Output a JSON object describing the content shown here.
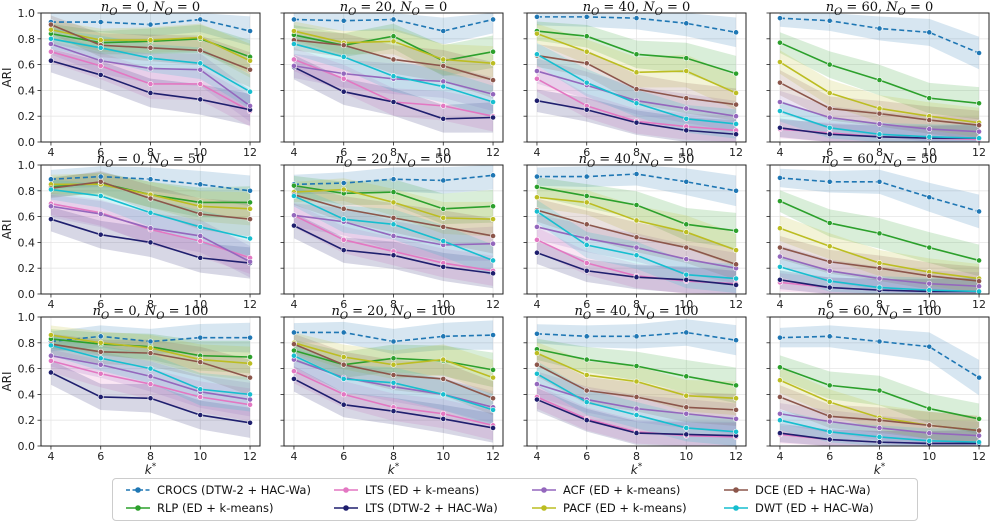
{
  "chart_data": {
    "type": "line",
    "ylabel": "ARI",
    "xlabel": "k*",
    "xticks": [
      4,
      6,
      8,
      10,
      12
    ],
    "yticks": [
      "0.0",
      "0.2",
      "0.4",
      "0.6",
      "0.8",
      "1.0"
    ],
    "ylim": [
      0,
      1
    ],
    "xlim": [
      3.6,
      12.4
    ],
    "series": [
      {
        "key": "crocs",
        "name": "CROCS (DTW-2 + HAC-Wa)",
        "color": "#1f77b4",
        "dashed": true
      },
      {
        "key": "rlp",
        "name": "RLP (ED + k-means)",
        "color": "#2ca02c",
        "dashed": false
      },
      {
        "key": "lts_ed",
        "name": "LTS (ED + k-means)",
        "color": "#e377c2",
        "dashed": false
      },
      {
        "key": "lts_dtw",
        "name": "LTS (DTW-2 + HAC-Wa)",
        "color": "#1f1f6e",
        "dashed": false
      },
      {
        "key": "acf",
        "name": "ACF (ED + k-means)",
        "color": "#9467bd",
        "dashed": false
      },
      {
        "key": "pacf",
        "name": "PACF (ED + k-means)",
        "color": "#bcbd22",
        "dashed": false
      },
      {
        "key": "dce",
        "name": "DCE (ED + HAC-Wa)",
        "color": "#8c564b",
        "dashed": false
      },
      {
        "key": "dwt",
        "name": "DWT (ED + HAC-Wa)",
        "color": "#17becf",
        "dashed": false
      }
    ],
    "panels": [
      {
        "title": "n_O = 0, N_O = 0",
        "values": {
          "crocs": [
            0.93,
            0.93,
            0.91,
            0.95,
            0.86
          ],
          "rlp": [
            0.84,
            0.77,
            0.78,
            0.8,
            0.66
          ],
          "lts_ed": [
            0.7,
            0.59,
            0.45,
            0.45,
            0.24
          ],
          "lts_dtw": [
            0.63,
            0.52,
            0.38,
            0.33,
            0.25
          ],
          "acf": [
            0.76,
            0.63,
            0.57,
            0.56,
            0.28
          ],
          "pacf": [
            0.87,
            0.79,
            0.79,
            0.81,
            0.63
          ],
          "dce": [
            0.91,
            0.75,
            0.73,
            0.71,
            0.56
          ],
          "dwt": [
            0.8,
            0.73,
            0.65,
            0.61,
            0.39
          ]
        }
      },
      {
        "title": "n_O = 20, N_O = 0",
        "values": {
          "crocs": [
            0.95,
            0.94,
            0.95,
            0.86,
            0.95
          ],
          "rlp": [
            0.83,
            0.75,
            0.82,
            0.63,
            0.7
          ],
          "lts_ed": [
            0.64,
            0.49,
            0.31,
            0.28,
            0.2
          ],
          "lts_dtw": [
            0.58,
            0.39,
            0.31,
            0.18,
            0.19
          ],
          "acf": [
            0.59,
            0.53,
            0.49,
            0.47,
            0.37
          ],
          "pacf": [
            0.86,
            0.77,
            0.78,
            0.64,
            0.61
          ],
          "dce": [
            0.79,
            0.75,
            0.64,
            0.59,
            0.48
          ],
          "dwt": [
            0.76,
            0.66,
            0.51,
            0.43,
            0.31
          ]
        }
      },
      {
        "title": "n_O = 40, N_O = 0",
        "values": {
          "crocs": [
            0.97,
            0.97,
            0.96,
            0.92,
            0.85
          ],
          "rlp": [
            0.86,
            0.82,
            0.68,
            0.65,
            0.53
          ],
          "lts_ed": [
            0.49,
            0.28,
            0.16,
            0.12,
            0.09
          ],
          "lts_dtw": [
            0.32,
            0.25,
            0.15,
            0.09,
            0.06
          ],
          "acf": [
            0.55,
            0.44,
            0.32,
            0.26,
            0.2
          ],
          "pacf": [
            0.84,
            0.7,
            0.54,
            0.55,
            0.38
          ],
          "dce": [
            0.67,
            0.61,
            0.41,
            0.34,
            0.29
          ],
          "dwt": [
            0.68,
            0.46,
            0.3,
            0.18,
            0.14
          ]
        }
      },
      {
        "title": "n_O = 60, N_O = 0",
        "values": {
          "crocs": [
            0.96,
            0.94,
            0.88,
            0.85,
            0.69
          ],
          "rlp": [
            0.77,
            0.6,
            0.48,
            0.34,
            0.3
          ],
          "lts_ed": [
            0.1,
            0.07,
            0.04,
            0.03,
            0.02
          ],
          "lts_dtw": [
            0.11,
            0.06,
            0.04,
            0.03,
            0.03
          ],
          "acf": [
            0.31,
            0.19,
            0.14,
            0.1,
            0.08
          ],
          "pacf": [
            0.62,
            0.38,
            0.26,
            0.2,
            0.15
          ],
          "dce": [
            0.46,
            0.26,
            0.22,
            0.17,
            0.13
          ],
          "dwt": [
            0.24,
            0.11,
            0.06,
            0.04,
            0.03
          ]
        }
      },
      {
        "title": "n_O = 0, N_O = 50",
        "values": {
          "crocs": [
            0.89,
            0.91,
            0.89,
            0.85,
            0.8
          ],
          "rlp": [
            0.83,
            0.86,
            0.77,
            0.71,
            0.71
          ],
          "lts_ed": [
            0.7,
            0.63,
            0.5,
            0.41,
            0.28
          ],
          "lts_dtw": [
            0.58,
            0.46,
            0.4,
            0.28,
            0.24
          ],
          "acf": [
            0.68,
            0.62,
            0.51,
            0.45,
            0.25
          ],
          "pacf": [
            0.85,
            0.85,
            0.77,
            0.68,
            0.66
          ],
          "dce": [
            0.82,
            0.87,
            0.74,
            0.62,
            0.58
          ],
          "dwt": [
            0.81,
            0.76,
            0.63,
            0.52,
            0.43
          ]
        }
      },
      {
        "title": "n_O = 20, N_O = 50",
        "values": {
          "crocs": [
            0.85,
            0.86,
            0.89,
            0.88,
            0.92
          ],
          "rlp": [
            0.84,
            0.78,
            0.79,
            0.66,
            0.68
          ],
          "lts_ed": [
            0.61,
            0.42,
            0.33,
            0.24,
            0.18
          ],
          "lts_dtw": [
            0.53,
            0.34,
            0.3,
            0.21,
            0.16
          ],
          "acf": [
            0.61,
            0.56,
            0.45,
            0.38,
            0.39
          ],
          "pacf": [
            0.79,
            0.81,
            0.71,
            0.59,
            0.58
          ],
          "dce": [
            0.77,
            0.66,
            0.59,
            0.52,
            0.45
          ],
          "dwt": [
            0.76,
            0.58,
            0.54,
            0.41,
            0.26
          ]
        }
      },
      {
        "title": "n_O = 40, N_O = 50",
        "values": {
          "crocs": [
            0.91,
            0.91,
            0.93,
            0.87,
            0.8
          ],
          "rlp": [
            0.83,
            0.76,
            0.69,
            0.54,
            0.49
          ],
          "lts_ed": [
            0.42,
            0.24,
            0.14,
            0.1,
            0.08
          ],
          "lts_dtw": [
            0.32,
            0.18,
            0.13,
            0.11,
            0.07
          ],
          "acf": [
            0.52,
            0.43,
            0.36,
            0.27,
            0.2
          ],
          "pacf": [
            0.75,
            0.71,
            0.57,
            0.48,
            0.34
          ],
          "dce": [
            0.65,
            0.54,
            0.44,
            0.36,
            0.23
          ],
          "dwt": [
            0.64,
            0.38,
            0.3,
            0.15,
            0.12
          ]
        }
      },
      {
        "title": "n_O = 60, N_O = 50",
        "values": {
          "crocs": [
            0.9,
            0.87,
            0.87,
            0.75,
            0.64
          ],
          "rlp": [
            0.72,
            0.55,
            0.47,
            0.36,
            0.26
          ],
          "lts_ed": [
            0.09,
            0.05,
            0.03,
            0.02,
            0.02
          ],
          "lts_dtw": [
            0.11,
            0.05,
            0.03,
            0.02,
            0.02
          ],
          "acf": [
            0.29,
            0.18,
            0.12,
            0.08,
            0.06
          ],
          "pacf": [
            0.51,
            0.37,
            0.24,
            0.17,
            0.12
          ],
          "dce": [
            0.36,
            0.25,
            0.2,
            0.14,
            0.1
          ],
          "dwt": [
            0.21,
            0.1,
            0.05,
            0.03,
            0.02
          ]
        }
      },
      {
        "title": "n_O = 0, N_O = 100",
        "values": {
          "crocs": [
            0.81,
            0.85,
            0.81,
            0.84,
            0.84
          ],
          "rlp": [
            0.83,
            0.79,
            0.77,
            0.7,
            0.69
          ],
          "lts_ed": [
            0.66,
            0.56,
            0.48,
            0.38,
            0.32
          ],
          "lts_dtw": [
            0.57,
            0.38,
            0.37,
            0.24,
            0.18
          ],
          "acf": [
            0.7,
            0.63,
            0.54,
            0.42,
            0.36
          ],
          "pacf": [
            0.86,
            0.8,
            0.76,
            0.67,
            0.64
          ],
          "dce": [
            0.79,
            0.73,
            0.72,
            0.65,
            0.53
          ],
          "dwt": [
            0.78,
            0.68,
            0.6,
            0.44,
            0.4
          ]
        }
      },
      {
        "title": "n_O = 20, N_O = 100",
        "values": {
          "crocs": [
            0.88,
            0.88,
            0.81,
            0.85,
            0.86
          ],
          "rlp": [
            0.74,
            0.63,
            0.68,
            0.66,
            0.59
          ],
          "lts_ed": [
            0.58,
            0.4,
            0.3,
            0.25,
            0.16
          ],
          "lts_dtw": [
            0.52,
            0.32,
            0.27,
            0.21,
            0.14
          ],
          "acf": [
            0.67,
            0.53,
            0.46,
            0.4,
            0.3
          ],
          "pacf": [
            0.8,
            0.69,
            0.63,
            0.67,
            0.53
          ],
          "dce": [
            0.79,
            0.63,
            0.55,
            0.52,
            0.37
          ],
          "dwt": [
            0.7,
            0.52,
            0.49,
            0.4,
            0.28
          ]
        }
      },
      {
        "title": "n_O = 40, N_O = 100",
        "values": {
          "crocs": [
            0.87,
            0.85,
            0.85,
            0.88,
            0.82
          ],
          "rlp": [
            0.75,
            0.67,
            0.62,
            0.54,
            0.47
          ],
          "lts_ed": [
            0.38,
            0.21,
            0.11,
            0.08,
            0.07
          ],
          "lts_dtw": [
            0.36,
            0.2,
            0.1,
            0.09,
            0.08
          ],
          "acf": [
            0.48,
            0.36,
            0.29,
            0.25,
            0.21
          ],
          "pacf": [
            0.72,
            0.55,
            0.5,
            0.39,
            0.37
          ],
          "dce": [
            0.63,
            0.43,
            0.38,
            0.3,
            0.28
          ],
          "dwt": [
            0.56,
            0.34,
            0.24,
            0.14,
            0.11
          ]
        }
      },
      {
        "title": "n_O = 60, N_O = 100",
        "values": {
          "crocs": [
            0.84,
            0.85,
            0.81,
            0.77,
            0.53
          ],
          "rlp": [
            0.61,
            0.47,
            0.43,
            0.29,
            0.21
          ],
          "lts_ed": [
            0.09,
            0.05,
            0.03,
            0.02,
            0.02
          ],
          "lts_dtw": [
            0.1,
            0.05,
            0.03,
            0.02,
            0.02
          ],
          "acf": [
            0.25,
            0.19,
            0.14,
            0.1,
            0.08
          ],
          "pacf": [
            0.51,
            0.34,
            0.22,
            0.16,
            0.12
          ],
          "dce": [
            0.38,
            0.23,
            0.2,
            0.16,
            0.12
          ],
          "dwt": [
            0.2,
            0.11,
            0.07,
            0.04,
            0.03
          ]
        }
      }
    ]
  }
}
